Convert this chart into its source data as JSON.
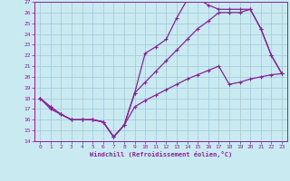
{
  "xlabel": "Windchill (Refroidissement éolien,°C)",
  "xlim": [
    -0.5,
    23.5
  ],
  "ylim": [
    14,
    27
  ],
  "xticks": [
    0,
    1,
    2,
    3,
    4,
    5,
    6,
    7,
    8,
    9,
    10,
    11,
    12,
    13,
    14,
    15,
    16,
    17,
    18,
    19,
    20,
    21,
    22,
    23
  ],
  "yticks": [
    14,
    15,
    16,
    17,
    18,
    19,
    20,
    21,
    22,
    23,
    24,
    25,
    26,
    27
  ],
  "bg_color": "#c8eaf0",
  "line_color": "#882299",
  "grid_color": "#a0c8d8",
  "line1_x": [
    0,
    1,
    2,
    3,
    4,
    5,
    6,
    7,
    8,
    9,
    10,
    11,
    12,
    13,
    14,
    15,
    16,
    17,
    18,
    19,
    20,
    21,
    22,
    23
  ],
  "line1_y": [
    18.0,
    17.0,
    16.5,
    16.0,
    16.0,
    16.0,
    15.8,
    14.4,
    15.5,
    18.5,
    22.2,
    22.8,
    23.5,
    25.5,
    27.2,
    27.3,
    26.7,
    26.3,
    26.3,
    26.3,
    26.3,
    24.5,
    22.0,
    20.3
  ],
  "line2_x": [
    0,
    1,
    2,
    3,
    4,
    5,
    6,
    7,
    8,
    9,
    10,
    11,
    12,
    13,
    14,
    15,
    16,
    17,
    18,
    19,
    20,
    21,
    22,
    23
  ],
  "line2_y": [
    18.0,
    17.2,
    16.5,
    16.0,
    16.0,
    16.0,
    15.8,
    14.4,
    15.5,
    18.5,
    19.5,
    20.5,
    21.5,
    22.5,
    23.5,
    24.5,
    25.2,
    26.0,
    26.0,
    26.0,
    26.3,
    24.5,
    22.0,
    20.3
  ],
  "line3_x": [
    0,
    1,
    2,
    3,
    4,
    5,
    6,
    7,
    8,
    9,
    10,
    11,
    12,
    13,
    14,
    15,
    16,
    17,
    18,
    19,
    20,
    21,
    22,
    23
  ],
  "line3_y": [
    18.0,
    17.2,
    16.5,
    16.0,
    16.0,
    16.0,
    15.8,
    14.4,
    15.5,
    17.2,
    17.8,
    18.3,
    18.8,
    19.3,
    19.8,
    20.2,
    20.6,
    21.0,
    19.3,
    19.5,
    19.8,
    20.0,
    20.2,
    20.3
  ]
}
